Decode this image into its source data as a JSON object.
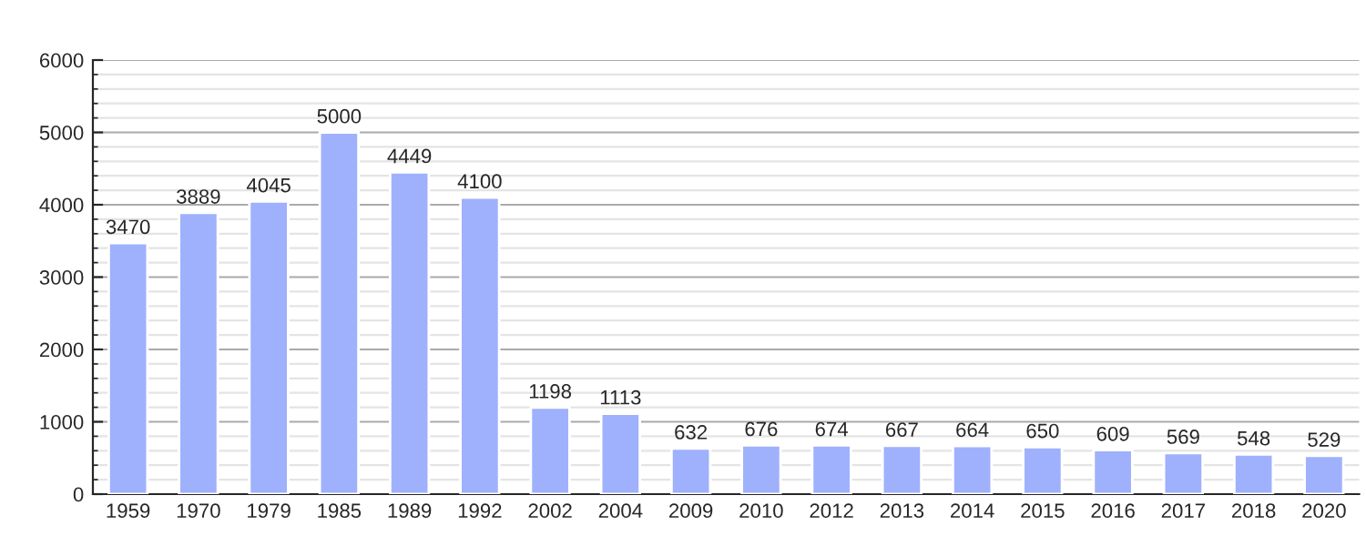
{
  "chart_data": {
    "type": "bar",
    "categories": [
      "1959",
      "1970",
      "1979",
      "1985",
      "1989",
      "1992",
      "2002",
      "2004",
      "2009",
      "2010",
      "2012",
      "2013",
      "2014",
      "2015",
      "2016",
      "2017",
      "2018",
      "2020"
    ],
    "values": [
      3470,
      3889,
      4045,
      5000,
      4449,
      4100,
      1198,
      1113,
      632,
      676,
      674,
      667,
      664,
      650,
      609,
      569,
      548,
      529
    ],
    "color": "#9fb0fd",
    "ylim": [
      0,
      6000
    ],
    "yticks": [
      0,
      1000,
      2000,
      3000,
      4000,
      5000,
      6000
    ],
    "grid": "y",
    "data_labels": true
  }
}
